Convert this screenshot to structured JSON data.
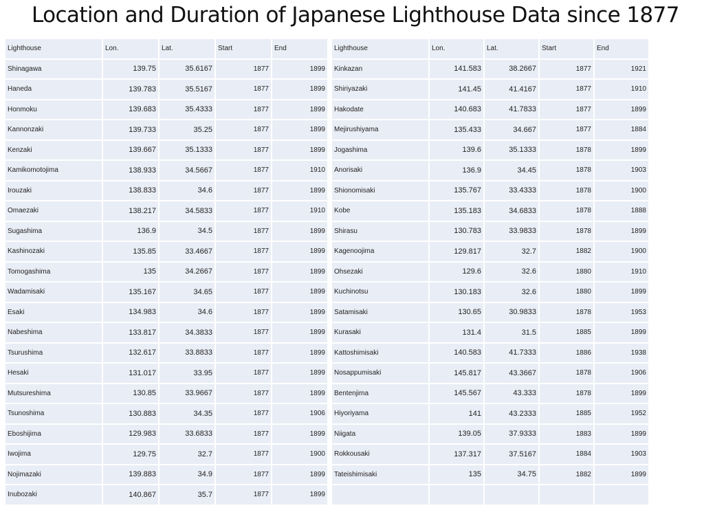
{
  "title": "Location and Duration of Japanese Lighthouse Data since 1877",
  "headers": [
    "Lighthouse",
    "Lon.",
    "Lat.",
    "Start",
    "End"
  ],
  "left_rows": [
    [
      "Shinagawa",
      "139.75",
      "35.6167",
      "1877",
      "1899"
    ],
    [
      "Haneda",
      "139.783",
      "35.5167",
      "1877",
      "1899"
    ],
    [
      "Honmoku",
      "139.683",
      "35.4333",
      "1877",
      "1899"
    ],
    [
      "Kannonzaki",
      "139.733",
      "35.25",
      "1877",
      "1899"
    ],
    [
      "Kenzaki",
      "139.667",
      "35.1333",
      "1877",
      "1899"
    ],
    [
      "Kamikomotojima",
      "138.933",
      "34.5667",
      "1877",
      "1910"
    ],
    [
      "Irouzaki",
      "138.833",
      "34.6",
      "1877",
      "1899"
    ],
    [
      "Omaezaki",
      "138.217",
      "34.5833",
      "1877",
      "1910"
    ],
    [
      "Sugashima",
      "136.9",
      "34.5",
      "1877",
      "1899"
    ],
    [
      "Kashinozaki",
      "135.85",
      "33.4667",
      "1877",
      "1899"
    ],
    [
      "Tomogashima",
      "135",
      "34.2667",
      "1877",
      "1899"
    ],
    [
      "Wadamisaki",
      "135.167",
      "34.65",
      "1877",
      "1899"
    ],
    [
      "Esaki",
      "134.983",
      "34.6",
      "1877",
      "1899"
    ],
    [
      "Nabeshima",
      "133.817",
      "34.3833",
      "1877",
      "1899"
    ],
    [
      "Tsurushima",
      "132.617",
      "33.8833",
      "1877",
      "1899"
    ],
    [
      "Hesaki",
      "131.017",
      "33.95",
      "1877",
      "1899"
    ],
    [
      "Mutsureshima",
      "130.85",
      "33.9667",
      "1877",
      "1899"
    ],
    [
      "Tsunoshima",
      "130.883",
      "34.35",
      "1877",
      "1906"
    ],
    [
      "Eboshijima",
      "129.983",
      "33.6833",
      "1877",
      "1899"
    ],
    [
      "Iwojima",
      "129.75",
      "32.7",
      "1877",
      "1900"
    ],
    [
      "Nojimazaki",
      "139.883",
      "34.9",
      "1877",
      "1899"
    ],
    [
      "Inubozaki",
      "140.867",
      "35.7",
      "1877",
      "1899"
    ]
  ],
  "right_rows": [
    [
      "Kinkazan",
      "141.583",
      "38.2667",
      "1877",
      "1921"
    ],
    [
      "Shiriyazaki",
      "141.45",
      "41.4167",
      "1877",
      "1910"
    ],
    [
      "Hakodate",
      "140.683",
      "41.7833",
      "1877",
      "1899"
    ],
    [
      "Mejirushiyama",
      "135.433",
      "34.667",
      "1877",
      "1884"
    ],
    [
      "Jogashima",
      "139.6",
      "35.1333",
      "1878",
      "1899"
    ],
    [
      "Anorisaki",
      "136.9",
      "34.45",
      "1878",
      "1903"
    ],
    [
      "Shionomisaki",
      "135.767",
      "33.4333",
      "1878",
      "1900"
    ],
    [
      "Kobe",
      "135.183",
      "34.6833",
      "1878",
      "1888"
    ],
    [
      "Shirasu",
      "130.783",
      "33.9833",
      "1878",
      "1899"
    ],
    [
      "Kagenoojima",
      "129.817",
      "32.7",
      "1882",
      "1900"
    ],
    [
      "Ohsezaki",
      "129.6",
      "32.6",
      "1880",
      "1910"
    ],
    [
      "Kuchinotsu",
      "130.183",
      "32.6",
      "1880",
      "1899"
    ],
    [
      "Satamisaki",
      "130.65",
      "30.9833",
      "1878",
      "1953"
    ],
    [
      "Kurasaki",
      "131.4",
      "31.5",
      "1885",
      "1899"
    ],
    [
      "Kattoshimisaki",
      "140.583",
      "41.7333",
      "1886",
      "1938"
    ],
    [
      "Nosappumisaki",
      "145.817",
      "43.3667",
      "1878",
      "1906"
    ],
    [
      "Bentenjima",
      "145.567",
      "43.333",
      "1878",
      "1899"
    ],
    [
      "Hiyoriyama",
      "141",
      "43.2333",
      "1885",
      "1952"
    ],
    [
      "Niigata",
      "139.05",
      "37.9333",
      "1883",
      "1899"
    ],
    [
      "Rokkousaki",
      "137.317",
      "37.5167",
      "1884",
      "1903"
    ],
    [
      "Tateishimisaki",
      "135",
      "34.75",
      "1882",
      "1899"
    ],
    [
      "",
      "",
      "",
      "",
      ""
    ]
  ]
}
